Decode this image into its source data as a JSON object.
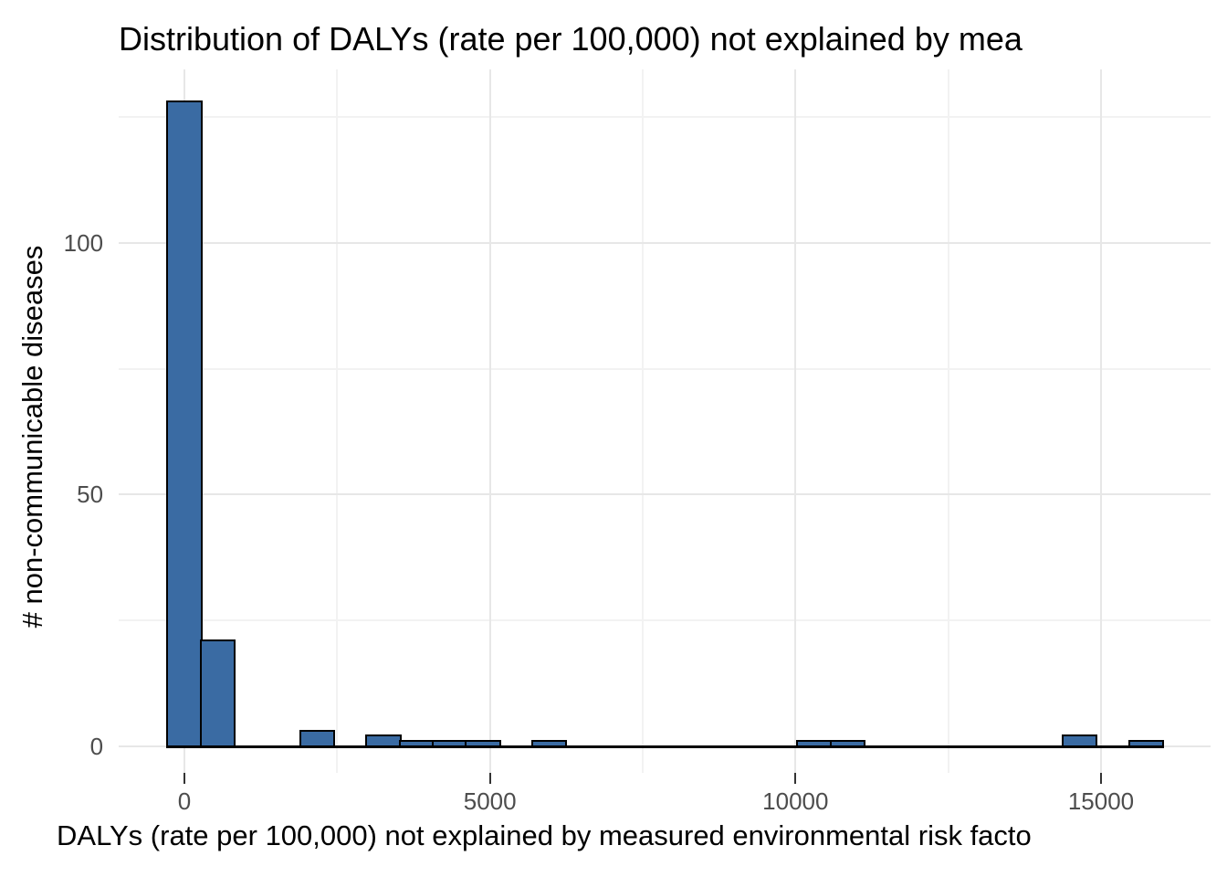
{
  "chart_data": {
    "type": "bar",
    "chart_kind": "histogram",
    "title": "Distribution of DALYs (rate per 100,000) not explained by mea",
    "xlabel": "DALYs (rate per 100,000) not explained by measured environmental risk facto",
    "ylabel": "# non-communicable diseases",
    "legend": "none",
    "grid": true,
    "xlim": [
      -1075,
      16800
    ],
    "ylim": [
      -5.2,
      134.4
    ],
    "x_ticks": [
      {
        "value": 0,
        "label": "0"
      },
      {
        "value": 5000,
        "label": "5000"
      },
      {
        "value": 10000,
        "label": "10000"
      },
      {
        "value": 15000,
        "label": "15000"
      }
    ],
    "x_minor_ticks": [
      2500,
      7500,
      12500
    ],
    "y_ticks": [
      {
        "value": 0,
        "label": "0"
      },
      {
        "value": 50,
        "label": "50"
      },
      {
        "value": 100,
        "label": "100"
      }
    ],
    "y_minor_ticks": [
      25,
      75,
      125
    ],
    "binwidth": 543,
    "bins": [
      {
        "center": 0,
        "count": 128
      },
      {
        "center": 543,
        "count": 21
      },
      {
        "center": 2171,
        "count": 3
      },
      {
        "center": 3256,
        "count": 2
      },
      {
        "center": 3799,
        "count": 1
      },
      {
        "center": 4342,
        "count": 1
      },
      {
        "center": 4884,
        "count": 1
      },
      {
        "center": 5970,
        "count": 1
      },
      {
        "center": 10311,
        "count": 1
      },
      {
        "center": 10854,
        "count": 1
      },
      {
        "center": 14653,
        "count": 2
      },
      {
        "center": 15738,
        "count": 1
      }
    ],
    "zero_count_baseline": {
      "from": -271,
      "to": 16010
    },
    "colors": {
      "bar_fill": "#3A6BA3",
      "bar_stroke": "#000000",
      "grid_major": "#e7e7e7",
      "grid_minor": "#f2f2f2",
      "axis_tick": "#333333",
      "tick_label": "#4d4d4d",
      "text": "#000000",
      "background": "#ffffff"
    }
  }
}
